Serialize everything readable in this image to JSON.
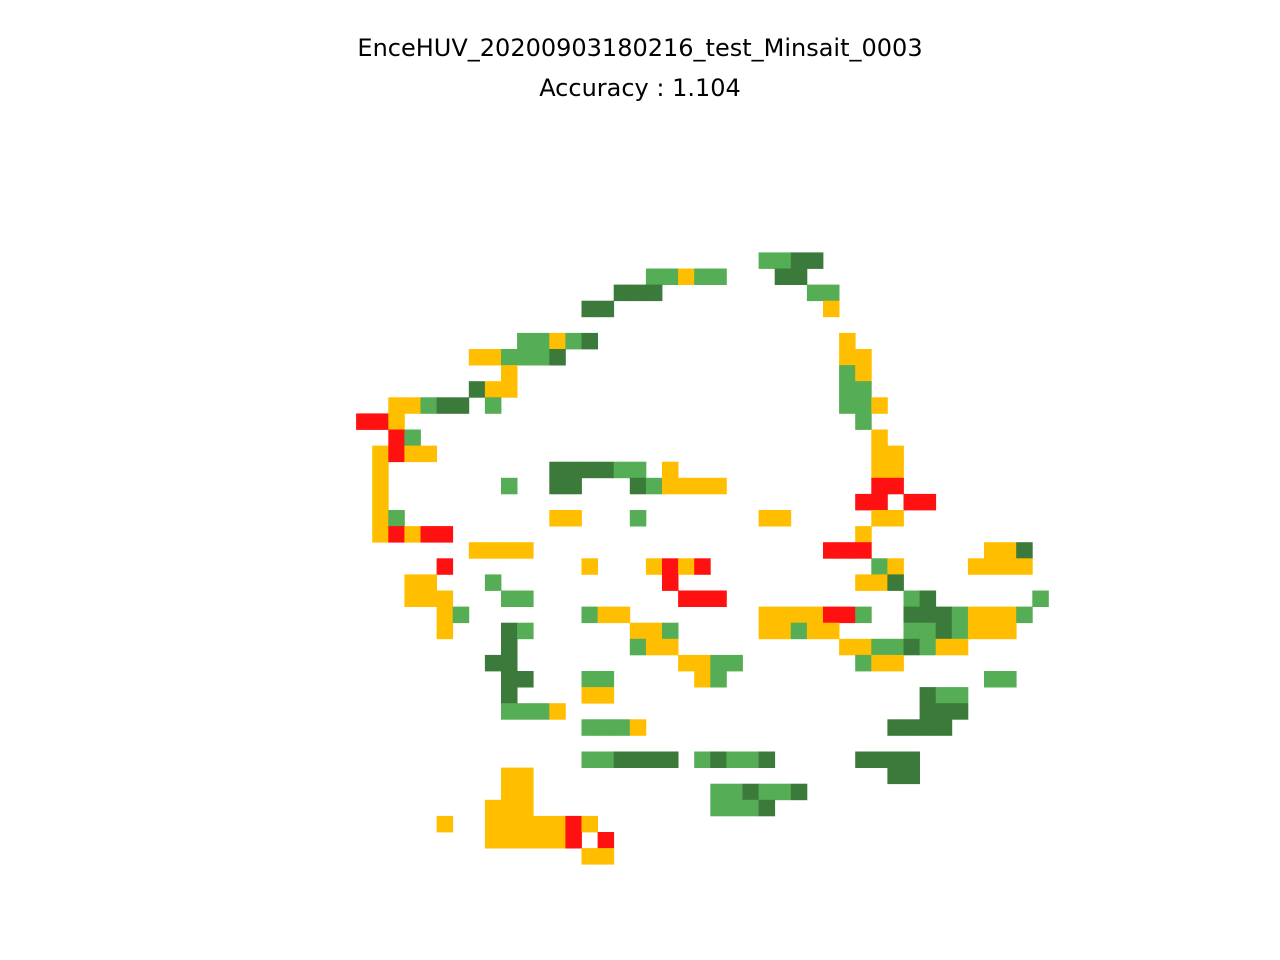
{
  "chart_data": {
    "type": "heatmap",
    "title": "EnceHUV_20200903180216_test_Minsait_0003",
    "subtitle": "Accuracy : 1.104",
    "axes_visible": false,
    "grid": false,
    "x_range": [
      0,
      45
    ],
    "y_range": [
      0,
      45
    ],
    "colors": {
      "D": "#3b7a3b",
      "G": "#55ad55",
      "Y": "#ffbf00",
      "R": "#ff1111"
    },
    "rows": [
      ".............................................",
      ".............................................",
      ".............................................",
      ".............................................",
      "..........................GGDD...............",
      "...................GGYGG...DD................",
      ".................DDD.........GG..............",
      "...............DD.............Y..............",
      ".............................................",
      "...........GGYGD...............Y.............",
      "........YYGGGD.................YY............",
      "..........Y....................GY............",
      "........DYY....................GG............",
      "...YYGDD.G.....................GGY...........",
      ".RRY............................G............",
      "...RG............................Y...........",
      "..YRYY...........................YY..........",
      "..Y..........DDDDGG.Y............YY..........",
      "..Y.......G..DD...DGYYYY.........RR..........",
      "..Y.............................RR.RR.........",
      "..YG.........YY...G.......YY.....YY..........",
      "..YRYRR.........................Y............",
      "........YYYY..................RRR.......YYD..",
      "......R........Y...YRYR..........GY....YYYY..",
      "....YY...G..........R...........YYD.........",
      "....YYY...GG.........RRR...........GD......G.",
      "......YG.......GYY........YYYYRRG..DDDGYYYG..",
      "......Y...DG......YYG.....YYGYY....GGDGYYY...",
      "..........D.......GYY..........YYGGDGYY.......",
      ".........DD..........YYGG.......GYY..........",
      "..........DD...GG.....YG................GG...",
      "..........D....YY...................DGG......",
      "..........GGGY......................DDD......",
      "...............GGGY...............DDDD.......",
      ".............................................",
      "...............GGDDDD.GDGGD.....DDDD.........",
      "..........YY......................DD.........",
      "..........YY...........GGDGGD................",
      ".........YYY...........GGGD..................",
      "......Y..YYYYYRY.............................",
      ".........YYYYYR.R............................",
      "...............YY............................",
      ".............................................",
      ".............................................",
      "............................................."
    ]
  }
}
